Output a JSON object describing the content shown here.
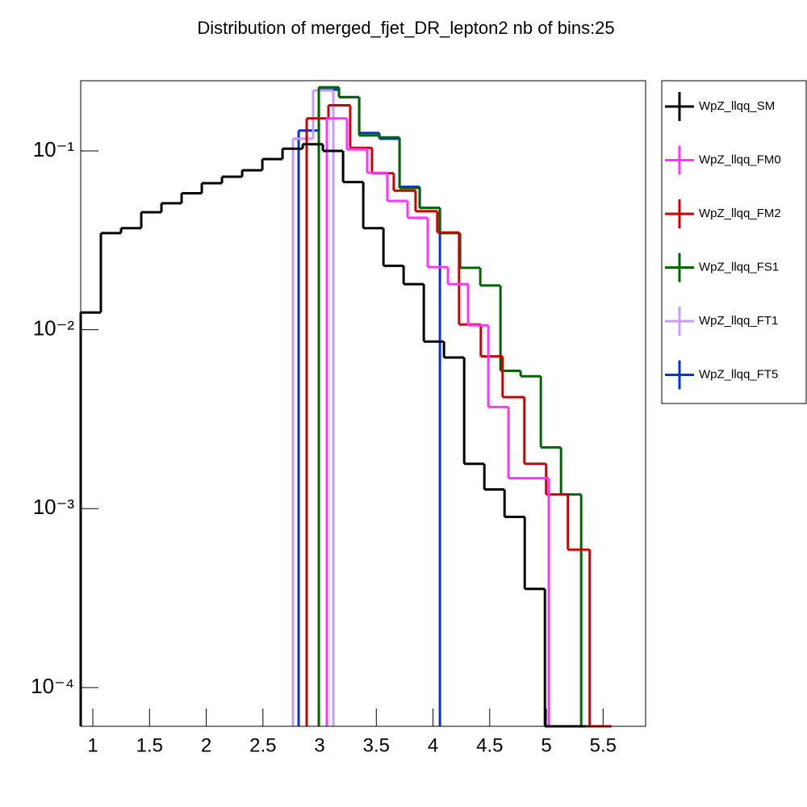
{
  "chart_data": {
    "type": "histogram",
    "title": "Distribution of merged_fjet_DR_lepton2 nb of bins:25",
    "xlim": [
      0.893,
      5.875
    ],
    "xticks": [
      1,
      1.5,
      2,
      2.5,
      3,
      3.5,
      4,
      4.5,
      5,
      5.5
    ],
    "ylim": [
      6.07e-05,
      0.247
    ],
    "log_y": true,
    "yticks": [
      {
        "value": 0.1,
        "label": "10⁻¹"
      },
      {
        "value": 0.01,
        "label": "10⁻²"
      },
      {
        "value": 0.001,
        "label": "10⁻³"
      },
      {
        "value": 0.0001,
        "label": "10⁻⁴"
      }
    ],
    "legend": "outside-right",
    "series": [
      {
        "name": "WpZ_llqq_SM",
        "color": "#000000",
        "bins": [
          0.893,
          1.071,
          1.249,
          1.427,
          1.605,
          1.783,
          1.961,
          2.139,
          2.317,
          2.495,
          2.673,
          2.851,
          3.029,
          3.207,
          3.385,
          3.563,
          3.741,
          3.919,
          4.097,
          4.275,
          4.453,
          4.631,
          4.809,
          4.987,
          5.165,
          5.343
        ],
        "values": [
          0.0125,
          0.0347,
          0.037,
          0.0454,
          0.051,
          0.058,
          0.066,
          0.0717,
          0.078,
          0.09,
          0.103,
          0.109,
          0.1,
          0.067,
          0.037,
          0.0228,
          0.018,
          0.0086,
          0.007,
          0.00178,
          0.00128,
          0.0009,
          0.000356,
          0,
          0
        ]
      },
      {
        "name": "WpZ_llqq_FM0",
        "color": "#ff33ff",
        "bins": [
          3.064,
          3.242,
          3.42,
          3.598,
          3.776,
          3.954,
          4.132,
          4.31,
          4.488,
          4.666,
          4.844,
          5.022,
          5.2
        ],
        "values": [
          0.152,
          0.102,
          0.0755,
          0.0525,
          0.0423,
          0.0224,
          0.018,
          0.0106,
          0.0037,
          0.00148,
          0.00148,
          0
        ]
      },
      {
        "name": "WpZ_llqq_FM2",
        "color": "#cc0000",
        "bins": [
          2.886,
          3.078,
          3.27,
          3.462,
          3.654,
          3.846,
          4.038,
          4.23,
          4.422,
          4.614,
          4.806,
          4.998,
          5.19,
          5.382,
          5.574
        ],
        "values": [
          0.152,
          0.18,
          0.104,
          0.075,
          0.06,
          0.046,
          0.035,
          0.0107,
          0.0071,
          0.0042,
          0.00178,
          0.0012,
          0.00059,
          0
        ]
      },
      {
        "name": "WpZ_llqq_FS1",
        "color": "#006600",
        "bins": [
          2.993,
          3.171,
          3.349,
          3.527,
          3.705,
          3.883,
          4.061,
          4.239,
          4.417,
          4.595,
          4.773,
          4.951,
          5.129,
          5.307,
          5.485
        ],
        "values": [
          0.227,
          0.2,
          0.122,
          0.119,
          0.062,
          0.048,
          0.0347,
          0.0222,
          0.0177,
          0.0059,
          0.0055,
          0.0022,
          0.0012,
          0
        ]
      },
      {
        "name": "WpZ_llqq_FT1",
        "color": "#cc99ff",
        "bins": [
          2.765,
          2.943,
          3.121
        ],
        "values": [
          0.117,
          0.218
        ]
      },
      {
        "name": "WpZ_llqq_FT5",
        "color": "#0033dd",
        "bins": [
          2.815,
          2.993,
          3.171,
          3.349,
          3.527,
          3.705,
          3.883,
          4.061
        ],
        "values": [
          0.13,
          0.22,
          0.2,
          0.126,
          0.117,
          0.063,
          0.048
        ]
      }
    ]
  }
}
